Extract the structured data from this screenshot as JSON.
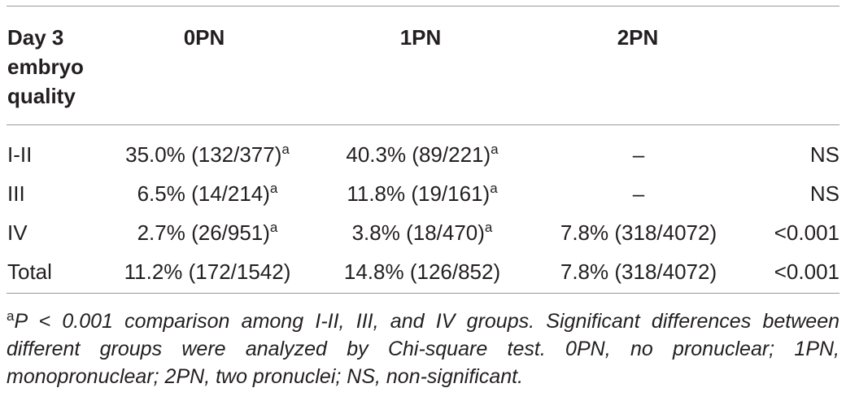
{
  "table": {
    "header": {
      "col0": [
        "Day 3",
        "embryo",
        "quality"
      ],
      "col1": "0PN",
      "col2": "1PN",
      "col3": "2PN",
      "col4": ""
    },
    "rows": [
      {
        "label": "I-II",
        "c0": "35.0% (132/377)",
        "c0_sup": "a",
        "c1": "40.3% (89/221)",
        "c1_sup": "a",
        "c2": "–",
        "p": "NS"
      },
      {
        "label": "III",
        "c0": "6.5% (14/214)",
        "c0_sup": "a",
        "c1": "11.8% (19/161)",
        "c1_sup": "a",
        "c2": "–",
        "p": "NS"
      },
      {
        "label": "IV",
        "c0": "2.7% (26/951)",
        "c0_sup": "a",
        "c1": "3.8% (18/470)",
        "c1_sup": "a",
        "c2": "7.8% (318/4072)",
        "p": "<0.001"
      },
      {
        "label": "Total",
        "c0": "11.2% (172/1542)",
        "c0_sup": "",
        "c1": "14.8% (126/852)",
        "c1_sup": "",
        "c2": "7.8% (318/4072)",
        "p": "<0.001"
      }
    ]
  },
  "footnote": {
    "marker": "a",
    "text": "P < 0.001 comparison among I-II, III, and IV groups. Significant differences between different groups were analyzed by Chi-square test. 0PN, no pronuclear; 1PN, monopronuclear; 2PN, two pronuclei; NS, non-significant."
  }
}
